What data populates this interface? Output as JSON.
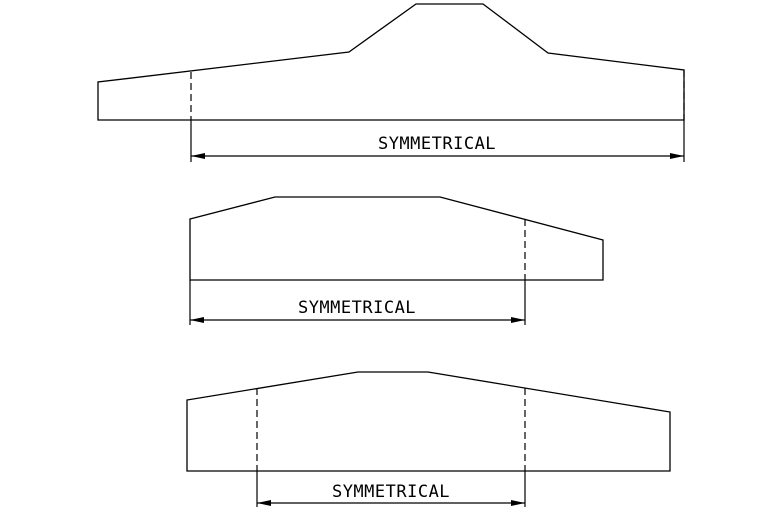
{
  "figures": [
    {
      "label": "SYMMETRICAL"
    },
    {
      "label": "SYMMETRICAL"
    },
    {
      "label": "SYMMETRICAL"
    }
  ]
}
